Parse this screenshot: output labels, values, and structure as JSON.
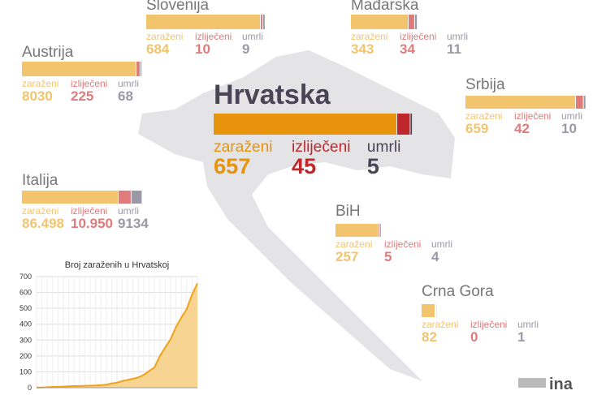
{
  "legend": [
    "zaraženi",
    "izliječeni",
    "umrli"
  ],
  "countries": [
    {
      "name": "Hrvatska",
      "values": [
        657,
        45,
        5
      ]
    },
    {
      "name": "Slovenija",
      "values": [
        684,
        10,
        9
      ]
    },
    {
      "name": "Mađarska",
      "values": [
        343,
        34,
        11
      ]
    },
    {
      "name": "Austrija",
      "values": [
        8030,
        225,
        68
      ]
    },
    {
      "name": "Srbija",
      "values": [
        659,
        42,
        10
      ]
    },
    {
      "name": "Italija",
      "values": [
        86498,
        10950,
        9134
      ],
      "value_labels": [
        "86.498",
        "10.950",
        "9134"
      ]
    },
    {
      "name": "BiH",
      "values": [
        257,
        5,
        4
      ]
    },
    {
      "name": "Crna Gora",
      "values": [
        82,
        0,
        1
      ]
    }
  ],
  "chart_data": {
    "type": "area",
    "title": "Broj zaraženih u Hrvatskoj",
    "categories": [
      null,
      null,
      null,
      null,
      null,
      null,
      null,
      null,
      null,
      null,
      null,
      null,
      null,
      null,
      null,
      null,
      null,
      null,
      null,
      null,
      null,
      null,
      null,
      null,
      null,
      null,
      null,
      null,
      null,
      null,
      null
    ],
    "values": [
      1,
      1,
      3,
      5,
      6,
      7,
      9,
      10,
      11,
      12,
      13,
      14,
      16,
      19,
      27,
      32,
      42,
      49,
      57,
      65,
      81,
      105,
      128,
      200,
      254,
      306,
      382,
      442,
      495,
      586,
      657
    ],
    "color": "#f0a21a",
    "fill": "#f7d492",
    "ylim": [
      0,
      700
    ],
    "yticks": [
      0,
      100,
      200,
      300,
      400,
      500,
      600,
      700
    ],
    "grid": true
  },
  "logo": "ina"
}
